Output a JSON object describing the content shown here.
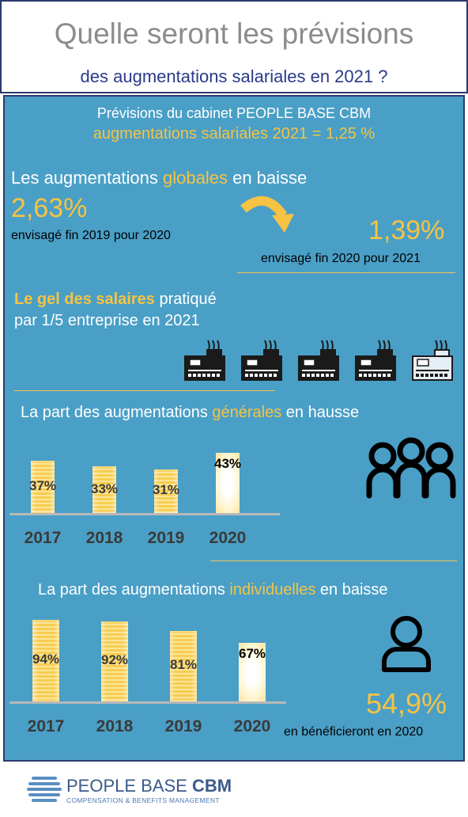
{
  "header": {
    "title_line1": "Quelle seront les prévisions",
    "title_line2": "des augmentations salariales en 2021 ?"
  },
  "intro": {
    "line1": "Prévisions du cabinet PEOPLE BASE CBM",
    "line2": "augmentations salariales 2021 = 1,25 %"
  },
  "globales": {
    "title_pre": "Les augmentations ",
    "title_hl": "globales",
    "title_post": " en baisse",
    "value_before": "2,63%",
    "caption_before": "envisagé fin 2019 pour 2020",
    "value_after": "1,39%",
    "caption_after": "envisagé fin 2020 pour 2021"
  },
  "gel": {
    "title_hl": "Le gel des salaires",
    "title_post": " pratiqué",
    "line2": "par 1/5 entreprise en 2021",
    "factory_count": 5,
    "highlighted_count": 1
  },
  "generales": {
    "title_pre": "La part des augmentations ",
    "title_hl": "générales",
    "title_post": " en hausse"
  },
  "individuelles": {
    "title_pre": "La part des augmentations ",
    "title_hl": "individuelles",
    "title_post": " en baisse",
    "stat_value": "54,9%",
    "stat_caption": "en bénéficieront en 2020"
  },
  "footer": {
    "brand_light": "PEOPLE BASE ",
    "brand_bold": "CBM",
    "tagline": "COMPENSATION & BENEFITS MANAGEMENT"
  },
  "colors": {
    "panel": "#4a9fc6",
    "gold": "#f6c343",
    "navy": "#2b3a8a"
  },
  "chart_data": [
    {
      "type": "bar",
      "categories": [
        "2017",
        "2018",
        "2019",
        "2020"
      ],
      "values": [
        37,
        33,
        31,
        43
      ],
      "labels": [
        "37%",
        "33%",
        "31%",
        "43%"
      ],
      "ylim": [
        0,
        45
      ],
      "highlight_last": true
    },
    {
      "type": "bar",
      "categories": [
        "2017",
        "2018",
        "2019",
        "2020"
      ],
      "values": [
        94,
        92,
        81,
        67
      ],
      "labels": [
        "94%",
        "92%",
        "81%",
        "67%"
      ],
      "ylim": [
        0,
        100
      ],
      "highlight_last": true
    }
  ]
}
